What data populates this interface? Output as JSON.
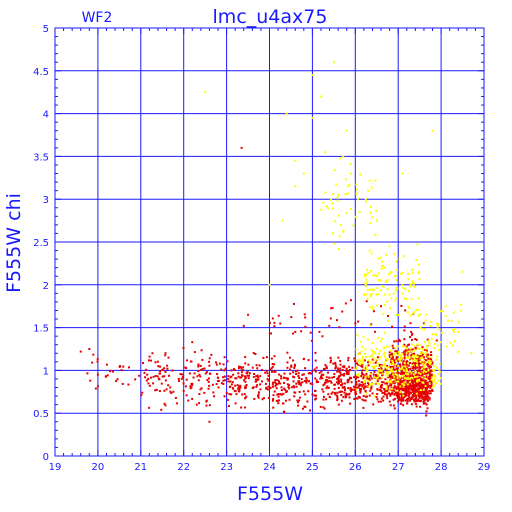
{
  "chart_data": {
    "type": "scatter",
    "title": "lmc_u4ax75",
    "panel_label": "WF2",
    "xlabel": "F555W",
    "ylabel": "F555W  chi",
    "xlim": [
      19,
      29
    ],
    "ylim": [
      0,
      5
    ],
    "xticks": [
      "19",
      "20",
      "21",
      "22",
      "23",
      "24",
      "25",
      "26",
      "27",
      "28",
      "29"
    ],
    "yticks": [
      "0",
      "0.5",
      "1",
      "1.5",
      "2",
      "2.5",
      "3",
      "3.5",
      "4",
      "4.5",
      "5"
    ],
    "grid": true,
    "colors": {
      "axis": "#1a1aff",
      "grid": "#1a1aff",
      "text": "#1a1aff",
      "red": "#e60000",
      "yellow": "#ffff00",
      "background": "#ffffff"
    },
    "series": [
      {
        "color": "red",
        "clusters": [
          {
            "x": [
              19.6,
              21.0
            ],
            "y": [
              0.6,
              1.3
            ],
            "n": 25
          },
          {
            "x": [
              21.0,
              23.0
            ],
            "y": [
              0.45,
              1.35
            ],
            "n": 150
          },
          {
            "x": [
              23.0,
              25.5
            ],
            "y": [
              0.45,
              1.3
            ],
            "n": 330
          },
          {
            "x": [
              25.5,
              26.8
            ],
            "y": [
              0.45,
              1.25
            ],
            "n": 300
          },
          {
            "x": [
              26.8,
              27.8
            ],
            "y": [
              0.4,
              1.5
            ],
            "n": 600
          },
          {
            "x": [
              27.0,
              27.7
            ],
            "y": [
              0.55,
              1.0
            ],
            "n": 250
          },
          {
            "x": [
              24.0,
              27.5
            ],
            "y": [
              1.25,
              1.9
            ],
            "n": 40
          }
        ],
        "points": [
          {
            "x": 19.6,
            "y": 1.22
          },
          {
            "x": 19.8,
            "y": 1.25
          },
          {
            "x": 21.1,
            "y": 0.92
          },
          {
            "x": 22.2,
            "y": 1.33
          },
          {
            "x": 23.35,
            "y": 3.6
          },
          {
            "x": 23.5,
            "y": 1.65
          },
          {
            "x": 23.4,
            "y": 1.52
          },
          {
            "x": 24.6,
            "y": 1.45
          },
          {
            "x": 25.9,
            "y": 1.82
          },
          {
            "x": 26.0,
            "y": 1.55
          },
          {
            "x": 26.6,
            "y": 1.75
          },
          {
            "x": 27.3,
            "y": 1.45
          },
          {
            "x": 27.6,
            "y": 1.55
          },
          {
            "x": 27.9,
            "y": 1.35
          },
          {
            "x": 22.6,
            "y": 0.4
          },
          {
            "x": 20.0,
            "y": 0.95
          }
        ]
      },
      {
        "color": "yellow",
        "clusters": [
          {
            "x": [
              26.0,
              28.0
            ],
            "y": [
              0.6,
              1.5
            ],
            "n": 320
          },
          {
            "x": [
              26.2,
              27.5
            ],
            "y": [
              1.4,
              2.6
            ],
            "n": 120
          },
          {
            "x": [
              25.2,
              26.5
            ],
            "y": [
              2.2,
              3.7
            ],
            "n": 50
          },
          {
            "x": [
              27.5,
              28.5
            ],
            "y": [
              1.0,
              2.0
            ],
            "n": 40
          }
        ],
        "points": [
          {
            "x": 22.5,
            "y": 4.25
          },
          {
            "x": 24.0,
            "y": 2.0
          },
          {
            "x": 24.4,
            "y": 4.0
          },
          {
            "x": 24.6,
            "y": 3.45
          },
          {
            "x": 24.8,
            "y": 3.3
          },
          {
            "x": 25.0,
            "y": 4.45
          },
          {
            "x": 25.0,
            "y": 3.95
          },
          {
            "x": 25.5,
            "y": 4.6
          },
          {
            "x": 25.2,
            "y": 4.2
          },
          {
            "x": 25.8,
            "y": 3.8
          },
          {
            "x": 25.9,
            "y": 3.3
          },
          {
            "x": 25.6,
            "y": 3.05
          },
          {
            "x": 26.3,
            "y": 3.1
          },
          {
            "x": 26.1,
            "y": 2.85
          },
          {
            "x": 26.5,
            "y": 2.75
          },
          {
            "x": 27.1,
            "y": 3.3
          },
          {
            "x": 27.8,
            "y": 3.8
          },
          {
            "x": 28.5,
            "y": 2.15
          },
          {
            "x": 28.7,
            "y": 1.2
          },
          {
            "x": 28.4,
            "y": 1.45
          },
          {
            "x": 24.3,
            "y": 2.75
          },
          {
            "x": 24.6,
            "y": 3.15
          },
          {
            "x": 25.3,
            "y": 3.55
          },
          {
            "x": 26.8,
            "y": 2.45
          }
        ]
      }
    ]
  }
}
